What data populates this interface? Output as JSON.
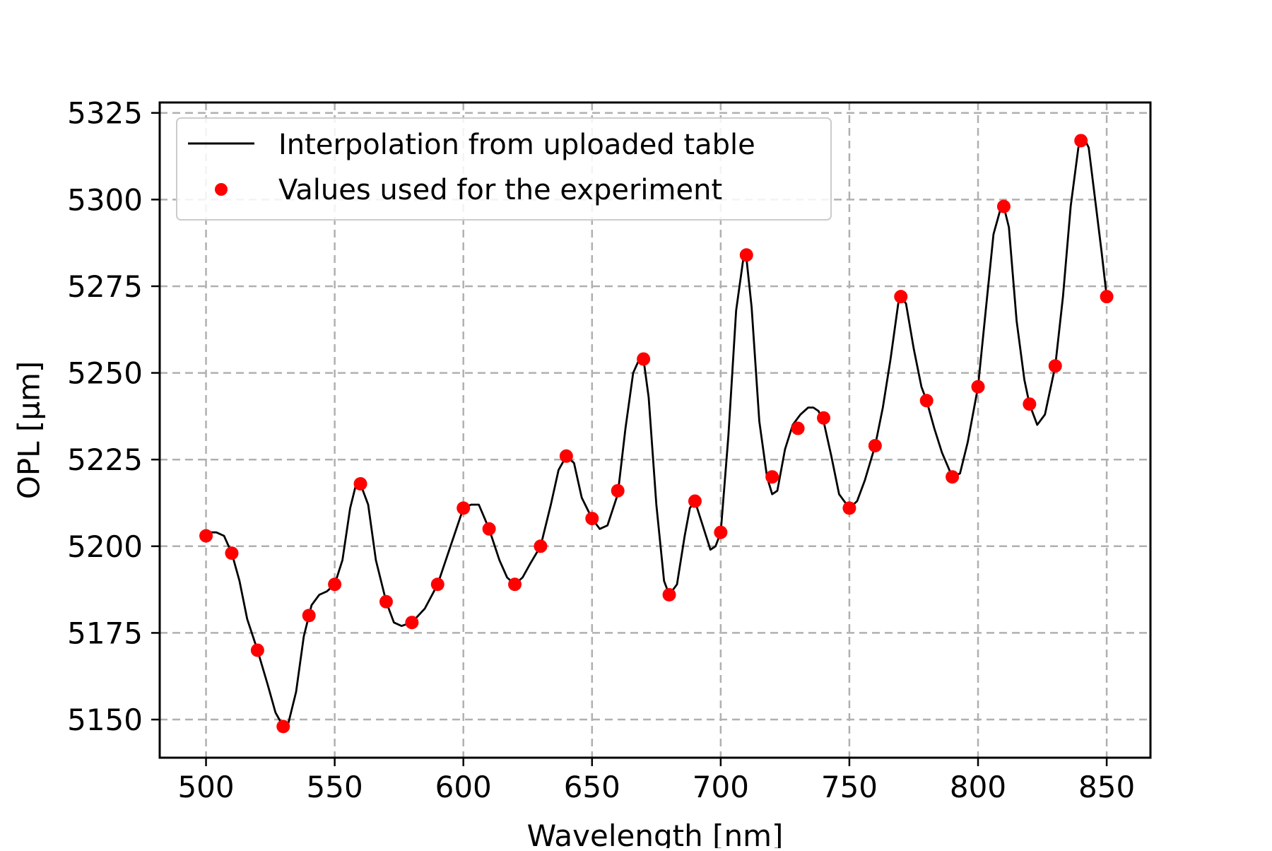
{
  "chart_data": {
    "type": "line",
    "title": "",
    "xlabel": "Wavelength [nm]",
    "ylabel": "OPL [μm]",
    "xlim": [
      482,
      867
    ],
    "ylim": [
      5139,
      5328
    ],
    "xticks": [
      500,
      550,
      600,
      650,
      700,
      750,
      800,
      850
    ],
    "xtick_labels": [
      "500",
      "550",
      "600",
      "650",
      "700",
      "750",
      "800",
      "850"
    ],
    "yticks": [
      5150,
      5175,
      5200,
      5225,
      5250,
      5275,
      5300,
      5325
    ],
    "ytick_labels": [
      "5150",
      "5175",
      "5200",
      "5225",
      "5250",
      "5275",
      "5300",
      "5325"
    ],
    "grid": true,
    "legend_position": "upper-left",
    "series": [
      {
        "name": "Interpolation from uploaded table",
        "style": "line",
        "color": "#000000",
        "x": [
          500,
          502,
          504,
          507,
          510,
          513,
          516,
          520,
          524,
          527,
          530,
          532,
          535,
          538,
          541,
          544,
          547,
          550,
          553,
          556,
          558,
          560,
          563,
          566,
          570,
          573,
          576,
          580,
          585,
          590,
          595,
          600,
          603,
          606,
          610,
          614,
          617,
          620,
          623,
          626,
          630,
          634,
          637,
          640,
          643,
          646,
          650,
          653,
          656,
          660,
          663,
          666,
          669,
          670,
          672,
          675,
          678,
          680,
          683,
          686,
          688,
          690,
          693,
          696,
          698,
          700,
          703,
          706,
          709,
          710,
          712,
          715,
          718,
          720,
          722,
          725,
          728,
          731,
          734,
          736,
          738,
          740,
          743,
          746,
          750,
          753,
          756,
          760,
          763,
          766,
          769,
          770,
          772,
          775,
          778,
          780,
          783,
          786,
          790,
          793,
          796,
          800,
          803,
          806,
          809,
          810,
          812,
          815,
          818,
          820,
          823,
          826,
          830,
          833,
          836,
          839,
          841,
          843,
          845,
          848,
          850
        ],
        "y": [
          5203,
          5204,
          5204,
          5203,
          5198,
          5190,
          5179,
          5170,
          5160,
          5152,
          5148,
          5149,
          5158,
          5174,
          5183,
          5186,
          5187,
          5189,
          5196,
          5211,
          5217,
          5218,
          5212,
          5196,
          5184,
          5178,
          5177,
          5178,
          5182,
          5189,
          5200,
          5211,
          5212,
          5212,
          5205,
          5196,
          5191,
          5189,
          5191,
          5195,
          5200,
          5212,
          5222,
          5226,
          5224,
          5214,
          5208,
          5205,
          5206,
          5215,
          5234,
          5250,
          5255,
          5254,
          5243,
          5212,
          5190,
          5186,
          5189,
          5203,
          5211,
          5213,
          5206,
          5199,
          5200,
          5204,
          5232,
          5268,
          5284,
          5283,
          5269,
          5236,
          5220,
          5215,
          5216,
          5228,
          5235,
          5238,
          5240,
          5240,
          5239,
          5236,
          5226,
          5215,
          5211,
          5213,
          5219,
          5229,
          5240,
          5254,
          5270,
          5272,
          5270,
          5257,
          5246,
          5242,
          5234,
          5227,
          5220,
          5221,
          5230,
          5246,
          5268,
          5290,
          5298,
          5298,
          5292,
          5265,
          5248,
          5241,
          5235,
          5238,
          5252,
          5272,
          5298,
          5315,
          5318,
          5315,
          5303,
          5285,
          5272
        ]
      },
      {
        "name": "Values used for the experiment",
        "style": "markers",
        "color": "#ff0000",
        "x": [
          500,
          510,
          520,
          530,
          540,
          550,
          560,
          570,
          580,
          590,
          600,
          610,
          620,
          630,
          640,
          650,
          660,
          670,
          680,
          690,
          700,
          710,
          720,
          730,
          740,
          750,
          760,
          770,
          780,
          790,
          800,
          810,
          820,
          830,
          840,
          850
        ],
        "y": [
          5203,
          5198,
          5170,
          5148,
          5180,
          5189,
          5218,
          5184,
          5178,
          5189,
          5211,
          5205,
          5189,
          5200,
          5226,
          5208,
          5216,
          5254,
          5186,
          5213,
          5204,
          5284,
          5220,
          5234,
          5237,
          5211,
          5229,
          5272,
          5242,
          5220,
          5246,
          5298,
          5241,
          5252,
          5317,
          5272
        ]
      }
    ]
  }
}
